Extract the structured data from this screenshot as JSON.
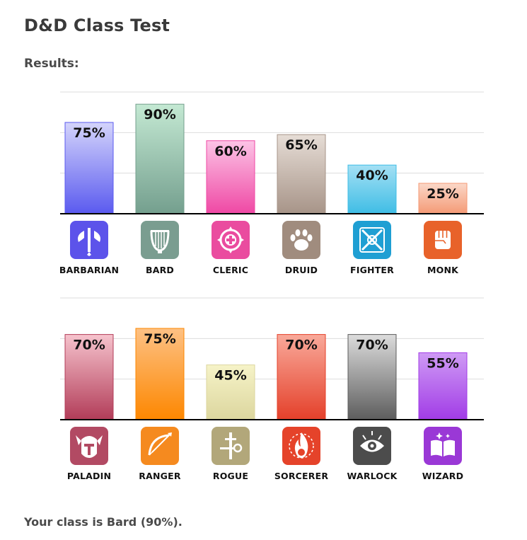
{
  "page": {
    "title": "D&D Class Test",
    "results_label": "Results:",
    "verdict": "Your class is Bard (90%)."
  },
  "chart_data": [
    {
      "type": "bar",
      "categories": [
        "BARBARIAN",
        "BARD",
        "CLERIC",
        "DRUID",
        "FIGHTER",
        "MONK"
      ],
      "values": [
        75,
        90,
        60,
        65,
        40,
        25
      ],
      "value_labels": [
        "75%",
        "90%",
        "60%",
        "65%",
        "40%",
        "25%"
      ],
      "ylim": [
        0,
        100
      ],
      "grid": true,
      "colors": [
        [
          "#d4d4fb",
          "#5a5aef"
        ],
        [
          "#c4e9d3",
          "#749f8e"
        ],
        [
          "#fcc4e6",
          "#ef48a4"
        ],
        [
          "#e6ddd6",
          "#a79488"
        ],
        [
          "#a4e0f4",
          "#3fbde5"
        ],
        [
          "#fbd8c8",
          "#f49a76"
        ]
      ],
      "icon_colors": [
        "#5c53ea",
        "#7a9d90",
        "#ea4c9f",
        "#a08c7e",
        "#1f9fd3",
        "#e8622a"
      ],
      "icons": [
        "axe-icon",
        "lyre-icon",
        "holy-symbol-icon",
        "paw-icon",
        "crossed-swords-icon",
        "fist-icon"
      ]
    },
    {
      "type": "bar",
      "categories": [
        "PALADIN",
        "RANGER",
        "ROGUE",
        "SORCERER",
        "WARLOCK",
        "WIZARD"
      ],
      "values": [
        70,
        75,
        45,
        70,
        70,
        55
      ],
      "value_labels": [
        "70%",
        "75%",
        "45%",
        "70%",
        "70%",
        "55%"
      ],
      "ylim": [
        0,
        100
      ],
      "grid": true,
      "colors": [
        [
          "#f6c3cd",
          "#b23c58"
        ],
        [
          "#fdc184",
          "#fd8700"
        ],
        [
          "#f6f3c8",
          "#dcd69e"
        ],
        [
          "#f9a99a",
          "#e4402a"
        ],
        [
          "#dcdcdc",
          "#5d5d5d"
        ],
        [
          "#cf9af5",
          "#a13ce6"
        ]
      ],
      "icon_colors": [
        "#b24a63",
        "#f58a1f",
        "#b2a77a",
        "#e5432a",
        "#4c4c4c",
        "#9a38d6"
      ],
      "icons": [
        "helmet-icon",
        "bow-icon",
        "key-dagger-icon",
        "flame-icon",
        "eye-icon",
        "spellbook-icon"
      ]
    }
  ]
}
